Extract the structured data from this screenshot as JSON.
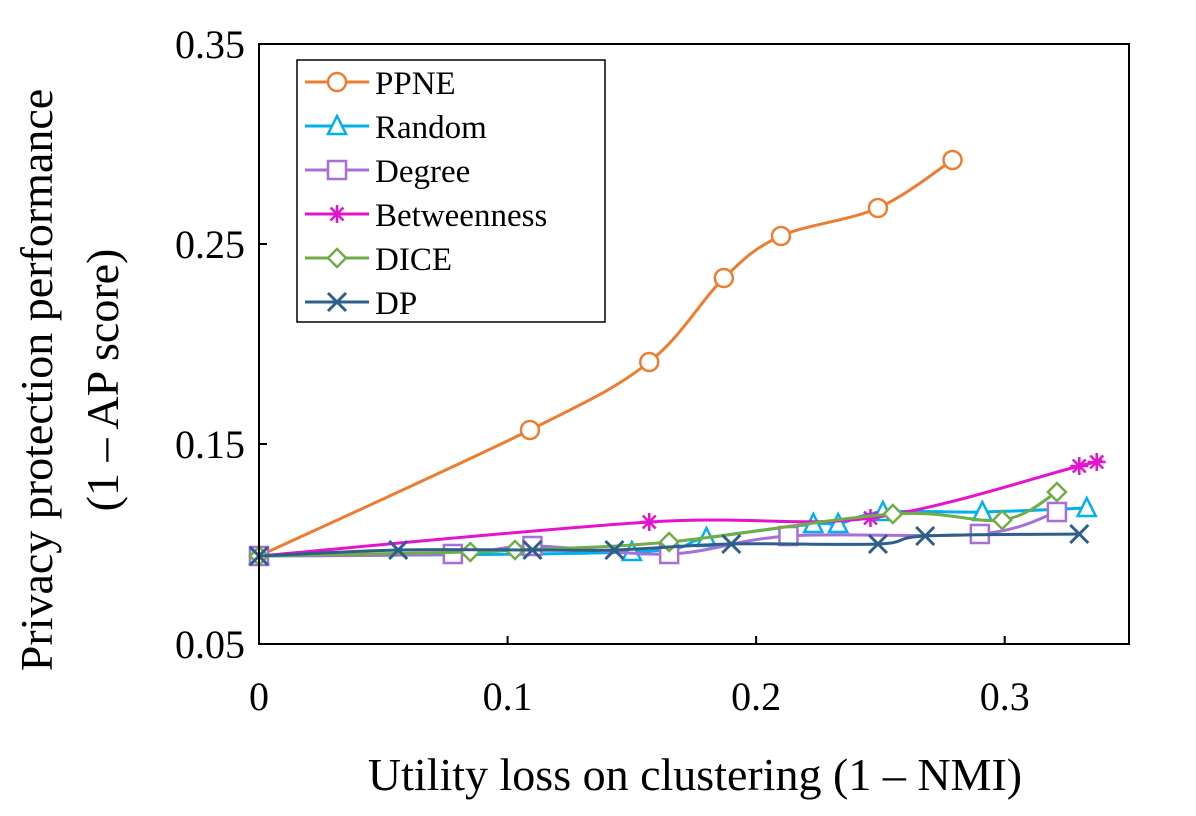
{
  "chart_data": {
    "type": "line",
    "xlabel": "Utility loss on clustering (1 – NMI)",
    "ylabel_line1": "Privacy protection performance",
    "ylabel_line2": "(1 – AP score)",
    "xlim": [
      0,
      0.35
    ],
    "ylim": [
      0.05,
      0.35
    ],
    "xticks": [
      0,
      0.1,
      0.2,
      0.3
    ],
    "xtick_labels": [
      "0",
      "0.1",
      "0.2",
      "0.3"
    ],
    "yticks": [
      0.05,
      0.15,
      0.25,
      0.35
    ],
    "ytick_labels": [
      "0.05",
      "0.15",
      "0.25",
      "0.35"
    ],
    "legend_position": "top-left",
    "grid": false,
    "series": [
      {
        "name": "PPNE",
        "color": "#ED7D31",
        "marker": "circle",
        "points": [
          [
            0,
            0.094
          ],
          [
            0.109,
            0.157
          ],
          [
            0.157,
            0.191
          ],
          [
            0.187,
            0.233
          ],
          [
            0.21,
            0.254
          ],
          [
            0.249,
            0.268
          ],
          [
            0.279,
            0.292
          ]
        ]
      },
      {
        "name": "Random",
        "color": "#00B0F0",
        "marker": "triangle",
        "points": [
          [
            0,
            0.094
          ],
          [
            0.15,
            0.096
          ],
          [
            0.18,
            0.103
          ],
          [
            0.223,
            0.11
          ],
          [
            0.233,
            0.11
          ],
          [
            0.251,
            0.116
          ],
          [
            0.291,
            0.116
          ],
          [
            0.333,
            0.118
          ]
        ]
      },
      {
        "name": "Degree",
        "color": "#A66FD9",
        "marker": "square",
        "points": [
          [
            0,
            0.094
          ],
          [
            0.078,
            0.095
          ],
          [
            0.11,
            0.099
          ],
          [
            0.165,
            0.095
          ],
          [
            0.213,
            0.104
          ],
          [
            0.29,
            0.105
          ],
          [
            0.321,
            0.116
          ]
        ]
      },
      {
        "name": "Betweenness",
        "color": "#E512CE",
        "marker": "asterisk",
        "points": [
          [
            0,
            0.094
          ],
          [
            0.157,
            0.111
          ],
          [
            0.246,
            0.113
          ],
          [
            0.33,
            0.139
          ],
          [
            0.337,
            0.141
          ]
        ]
      },
      {
        "name": "DICE",
        "color": "#70AD47",
        "marker": "diamond",
        "points": [
          [
            0,
            0.094
          ],
          [
            0.085,
            0.096
          ],
          [
            0.103,
            0.097
          ],
          [
            0.165,
            0.101
          ],
          [
            0.255,
            0.115
          ],
          [
            0.299,
            0.112
          ],
          [
            0.321,
            0.126
          ]
        ]
      },
      {
        "name": "DP",
        "color": "#2E5F8A",
        "marker": "x",
        "points": [
          [
            0,
            0.094
          ],
          [
            0.056,
            0.097
          ],
          [
            0.11,
            0.097
          ],
          [
            0.143,
            0.097
          ],
          [
            0.19,
            0.1
          ],
          [
            0.249,
            0.1
          ],
          [
            0.268,
            0.104
          ],
          [
            0.33,
            0.105
          ]
        ]
      }
    ]
  }
}
